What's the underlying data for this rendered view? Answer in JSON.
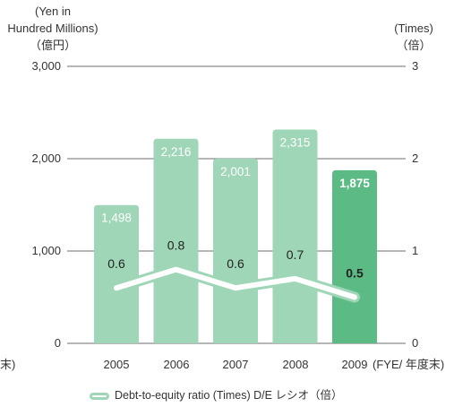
{
  "chart_data": {
    "type": "bar",
    "left_axis_label": [
      "(Yen in",
      "Hundred Millions)",
      "（億円）"
    ],
    "right_axis_label": [
      "(Times)",
      "（倍）"
    ],
    "left_ticks": [
      "3,000",
      "2,000",
      "1,000",
      "0"
    ],
    "right_ticks": [
      "3",
      "2",
      "1",
      "0"
    ],
    "ylim_left": [
      0,
      3000
    ],
    "ylim_right": [
      0,
      3
    ],
    "categories": [
      "2005",
      "2006",
      "2007",
      "2008",
      "2009"
    ],
    "x_suffix": "(FYE/ 年度末)",
    "x_prefix_partial": "末)",
    "series": [
      {
        "type": "bar",
        "axis": "left",
        "values": [
          1498,
          2216,
          2001,
          2315,
          1875
        ],
        "value_labels": [
          "1,498",
          "2,216",
          "2,001",
          "2,315",
          "1,875"
        ],
        "color": "#9ed6b7",
        "highlight_color": "#5cba84",
        "highlight_index": 4
      },
      {
        "type": "line",
        "axis": "right",
        "name": "Debt-to-equity ratio (Times)  D/E レシオ（倍）",
        "values": [
          0.6,
          0.8,
          0.6,
          0.7,
          0.5
        ],
        "value_labels": [
          "0.6",
          "0.8",
          "0.6",
          "0.7",
          "0.5"
        ],
        "color": "#9ed6b7"
      }
    ],
    "grid": false,
    "legend_position": "bottom-center"
  }
}
